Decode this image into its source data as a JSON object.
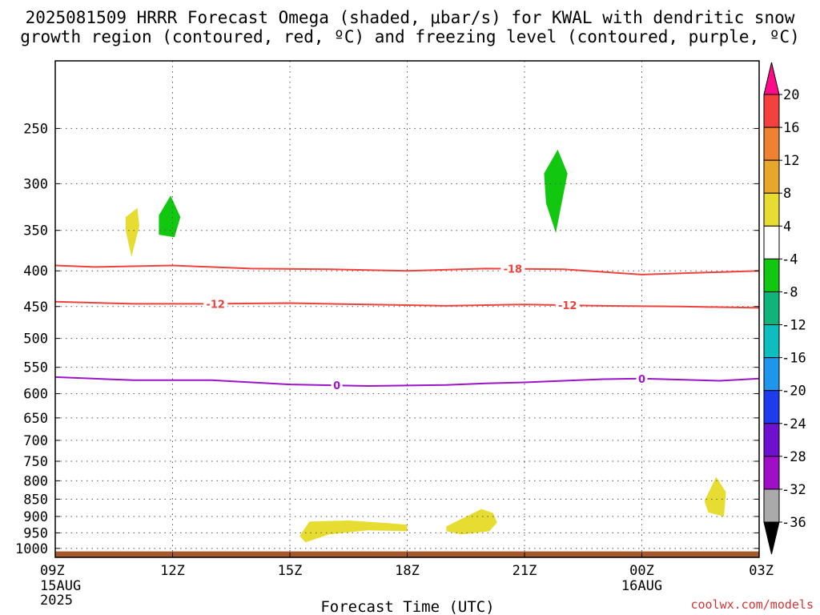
{
  "title_line1": "2025081509 HRRR Forecast Omega (shaded, μbar/s) for KWAL with dendritic snow",
  "title_line2": "growth region (contoured, red, ºC) and freezing level (contoured, purple, ºC)",
  "xlabel": "Forecast Time (UTC)",
  "credit": "coolwx.com/models",
  "chart_data": {
    "type": "contour",
    "x_ticks": [
      {
        "h": 0,
        "label": "09Z",
        "sub": [
          "15AUG",
          "2025"
        ]
      },
      {
        "h": 3,
        "label": "12Z",
        "sub": []
      },
      {
        "h": 6,
        "label": "15Z",
        "sub": []
      },
      {
        "h": 9,
        "label": "18Z",
        "sub": []
      },
      {
        "h": 12,
        "label": "21Z",
        "sub": []
      },
      {
        "h": 15,
        "label": "00Z",
        "sub": [
          "16AUG"
        ]
      },
      {
        "h": 18,
        "label": "03Z",
        "sub": []
      }
    ],
    "y_scale": "log",
    "y_ticks": [
      250,
      300,
      350,
      400,
      450,
      500,
      550,
      600,
      650,
      700,
      750,
      800,
      850,
      900,
      950,
      1000
    ],
    "ylim_hpa": [
      200,
      1030
    ],
    "xlim_hours": [
      0,
      18
    ],
    "grid": true,
    "colorbar": {
      "labels": [
        "20",
        "16",
        "12",
        "8",
        "4",
        "-4",
        "-8",
        "-12",
        "-16",
        "-20",
        "-24",
        "-28",
        "-32",
        "-36"
      ],
      "colors": [
        "#ff0a8a",
        "#f4413f",
        "#ee8232",
        "#e7a72d",
        "#e6dc32",
        "#ffffff",
        "#11c70f",
        "#10b37a",
        "#0ebdbd",
        "#1e96ed",
        "#1e3ceb",
        "#6e10cd",
        "#a00ec8",
        "#aaaaaa",
        "#000000"
      ]
    },
    "contours": [
      {
        "label": "-18",
        "color": "#f0423c",
        "points": [
          [
            0,
            393
          ],
          [
            1,
            395
          ],
          [
            3,
            393
          ],
          [
            5,
            397
          ],
          [
            7,
            398
          ],
          [
            9,
            400
          ],
          [
            11,
            397
          ],
          [
            13,
            398
          ],
          [
            15,
            405
          ],
          [
            18,
            400
          ]
        ],
        "label_at": [
          [
            11.7,
            397
          ]
        ]
      },
      {
        "label": "-12",
        "color": "#f0423c",
        "points": [
          [
            0,
            443
          ],
          [
            2,
            446
          ],
          [
            4,
            446
          ],
          [
            6,
            445
          ],
          [
            8,
            447
          ],
          [
            10,
            449
          ],
          [
            12,
            447
          ],
          [
            14,
            449
          ],
          [
            16,
            450
          ],
          [
            18,
            452
          ]
        ],
        "label_at": [
          [
            4.1,
            446
          ],
          [
            13.1,
            448
          ]
        ]
      },
      {
        "label": "0",
        "color": "#9c14c8",
        "points": [
          [
            0,
            568
          ],
          [
            2,
            574
          ],
          [
            4,
            574
          ],
          [
            6,
            582
          ],
          [
            8,
            585
          ],
          [
            10,
            583
          ],
          [
            11,
            580
          ],
          [
            12,
            578
          ],
          [
            14,
            572
          ],
          [
            15,
            571
          ],
          [
            17,
            575
          ],
          [
            18,
            571
          ]
        ],
        "label_at": [
          [
            7.2,
            584
          ],
          [
            15.0,
            571
          ]
        ]
      }
    ],
    "omega_regions": [
      {
        "value_class": "4..8",
        "color": "#e6dc32",
        "points": [
          [
            1.8,
            335
          ],
          [
            2.1,
            325
          ],
          [
            2.15,
            345
          ],
          [
            1.95,
            382
          ],
          [
            1.8,
            350
          ]
        ]
      },
      {
        "value_class": "-8..-4",
        "color": "#11c70f",
        "points": [
          [
            2.65,
            333
          ],
          [
            2.95,
            312
          ],
          [
            3.2,
            335
          ],
          [
            3.05,
            358
          ],
          [
            2.65,
            355
          ]
        ]
      },
      {
        "value_class": "-8..-4",
        "color": "#11c70f",
        "points": [
          [
            12.5,
            290
          ],
          [
            12.85,
            268
          ],
          [
            13.1,
            290
          ],
          [
            12.95,
            320
          ],
          [
            12.8,
            353
          ],
          [
            12.55,
            320
          ]
        ]
      },
      {
        "value_class": "4..8",
        "color": "#e6dc32",
        "points": [
          [
            6.25,
            960
          ],
          [
            6.5,
            915
          ],
          [
            7.5,
            912
          ],
          [
            8.5,
            920
          ],
          [
            9.0,
            925
          ],
          [
            9.0,
            945
          ],
          [
            8.0,
            942
          ],
          [
            7.0,
            955
          ],
          [
            6.4,
            980
          ]
        ]
      },
      {
        "value_class": "4..8",
        "color": "#e6dc32",
        "points": [
          [
            10.0,
            930
          ],
          [
            10.9,
            878
          ],
          [
            11.2,
            890
          ],
          [
            11.3,
            918
          ],
          [
            11.1,
            945
          ],
          [
            10.4,
            955
          ],
          [
            10.0,
            945
          ]
        ]
      },
      {
        "value_class": "4..8",
        "color": "#e6dc32",
        "points": [
          [
            16.6,
            855
          ],
          [
            16.9,
            790
          ],
          [
            17.15,
            830
          ],
          [
            17.1,
            900
          ],
          [
            16.7,
            888
          ]
        ]
      }
    ],
    "terrain": {
      "color": "#a5582c",
      "top_hpa": 1010
    }
  }
}
